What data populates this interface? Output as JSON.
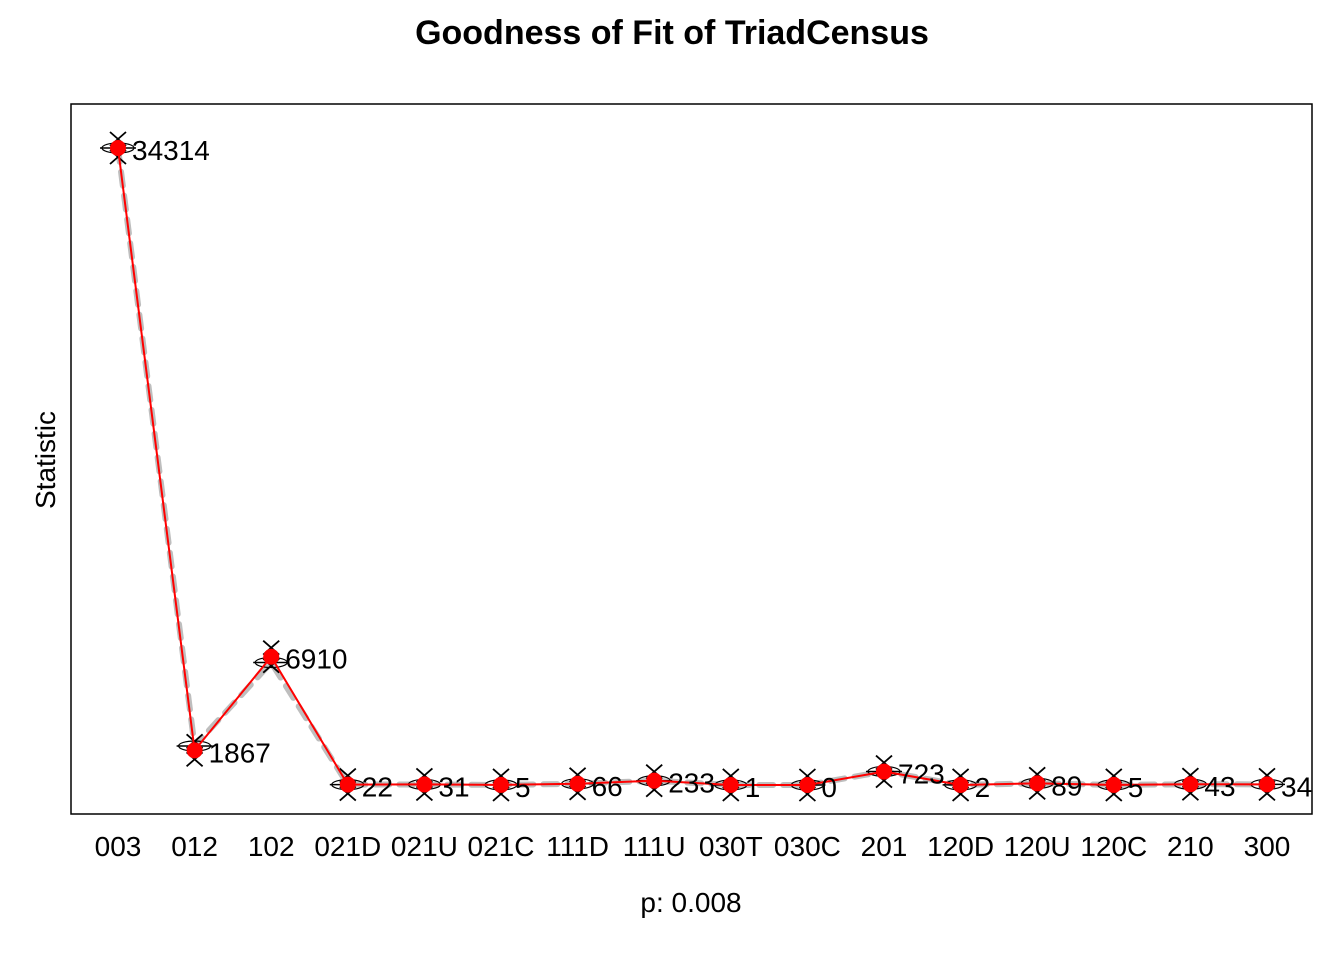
{
  "chart_data": {
    "type": "line",
    "title": "Goodness of Fit of TriadCensus",
    "xlabel": "p: 0.008",
    "ylabel": "Statistic",
    "categories": [
      "003",
      "012",
      "102",
      "021D",
      "021U",
      "021C",
      "111D",
      "111U",
      "030T",
      "030C",
      "201",
      "120D",
      "120U",
      "120C",
      "210",
      "300"
    ],
    "observed": {
      "values": [
        34314,
        1867,
        6910,
        22,
        31,
        5,
        66,
        233,
        1,
        0,
        723,
        2,
        89,
        5,
        43,
        34
      ],
      "labels": [
        "34314",
        "1867",
        "6910",
        "22",
        "31",
        "5",
        "66",
        "233",
        "1",
        "0",
        "723",
        "2",
        "89",
        "5",
        "43",
        "34"
      ],
      "color": "#ff0000"
    },
    "simulated_mean": {
      "values": [
        34314,
        2100,
        6600,
        20,
        30,
        5,
        64,
        230,
        3,
        0,
        730,
        4,
        87,
        6,
        42,
        34
      ],
      "color": "#bebebe",
      "style": "dashed"
    },
    "ylim": [
      -1500,
      36000
    ],
    "y_ticks_shown": false,
    "grid": false
  }
}
